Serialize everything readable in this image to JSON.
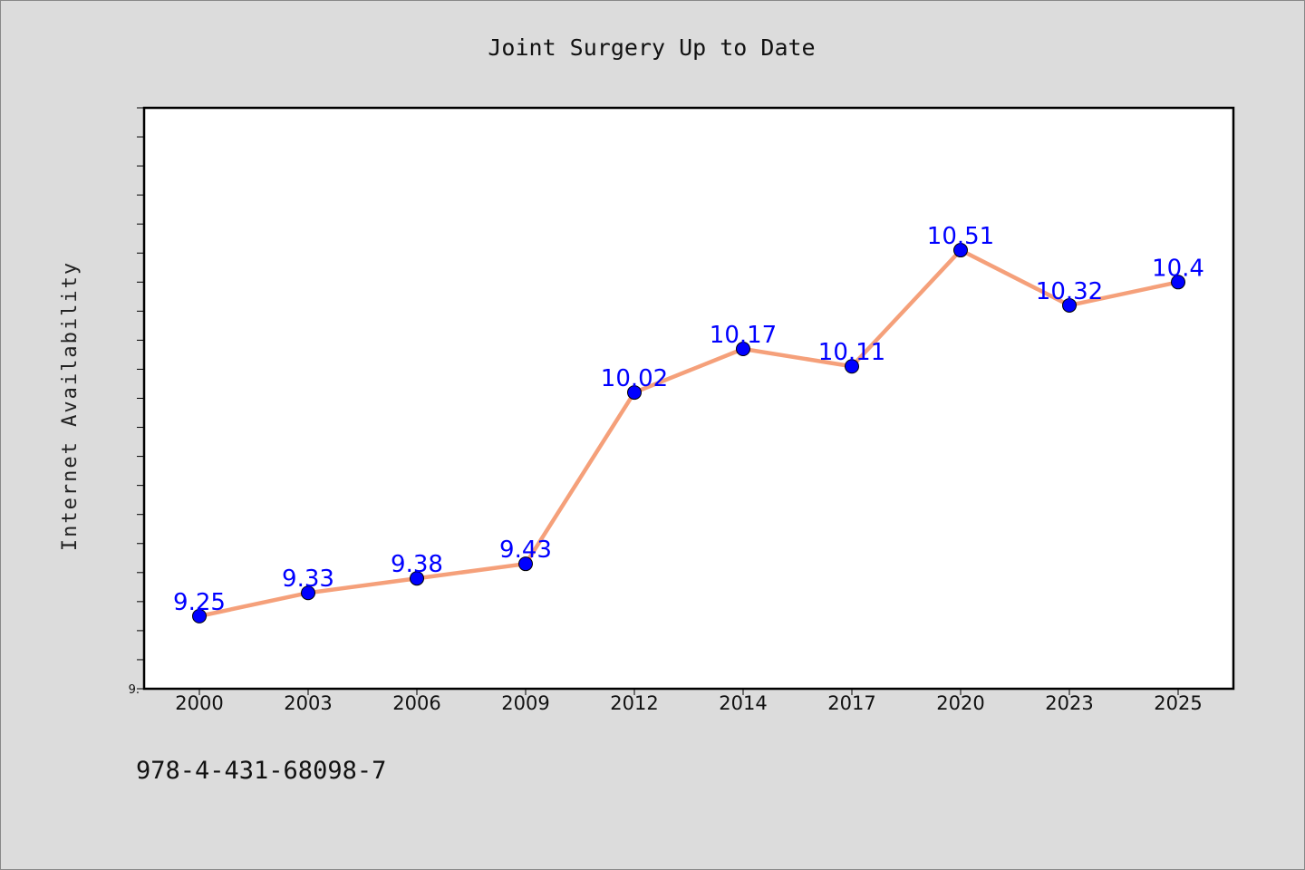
{
  "chart_data": {
    "type": "line",
    "title": "Joint Surgery Up to Date",
    "xlabel": "",
    "ylabel": "Internet Availability",
    "categories": [
      "2000",
      "2003",
      "2006",
      "2009",
      "2012",
      "2014",
      "2017",
      "2020",
      "2023",
      "2025"
    ],
    "series": [
      {
        "values": [
          9.25,
          9.33,
          9.38,
          9.43,
          10.02,
          10.17,
          10.11,
          10.51,
          10.32,
          10.4
        ],
        "data_labels": [
          "9.25",
          "9.33",
          "9.38",
          "9.43",
          "10.02",
          "10.17",
          "10.11",
          "10.51",
          "10.32",
          "10.4"
        ],
        "line_color": "#f5a07a",
        "marker_color": "#0000ff"
      }
    ],
    "ylim": [
      9.0,
      11.0
    ],
    "ytick_label": "9.",
    "grid": false,
    "legend": "none"
  },
  "footer": {
    "isbn": "978-4-431-68098-7"
  }
}
